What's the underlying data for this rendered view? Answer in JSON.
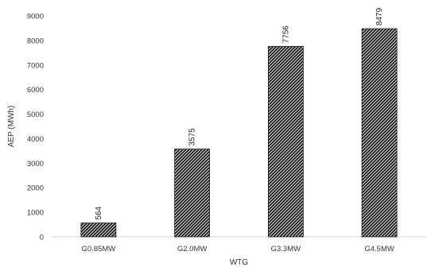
{
  "chart_data": {
    "type": "bar",
    "categories": [
      "G0.85MW",
      "G2.0MW",
      "G3.3MW",
      "G4.5MW"
    ],
    "values": [
      564,
      3575,
      7756,
      8479
    ],
    "data_labels": [
      "564",
      "3575",
      "7756",
      "8479"
    ],
    "xlabel": "WTG",
    "ylabel": "AEP (MWh)",
    "ylim": [
      0,
      9000
    ],
    "yticks": [
      0,
      1000,
      2000,
      3000,
      4000,
      5000,
      6000,
      7000,
      8000,
      9000
    ],
    "ytick_labels": [
      "0",
      "1000",
      "2000",
      "3000",
      "4000",
      "5000",
      "6000",
      "7000",
      "8000",
      "9000"
    ],
    "grid": false,
    "legend": "none",
    "bar_fill": "hatched",
    "colors": {
      "bar_fill": "#1a1a1a",
      "hatch": "#ffffff",
      "axis": "#d0d0d0",
      "text": "#333333"
    }
  }
}
